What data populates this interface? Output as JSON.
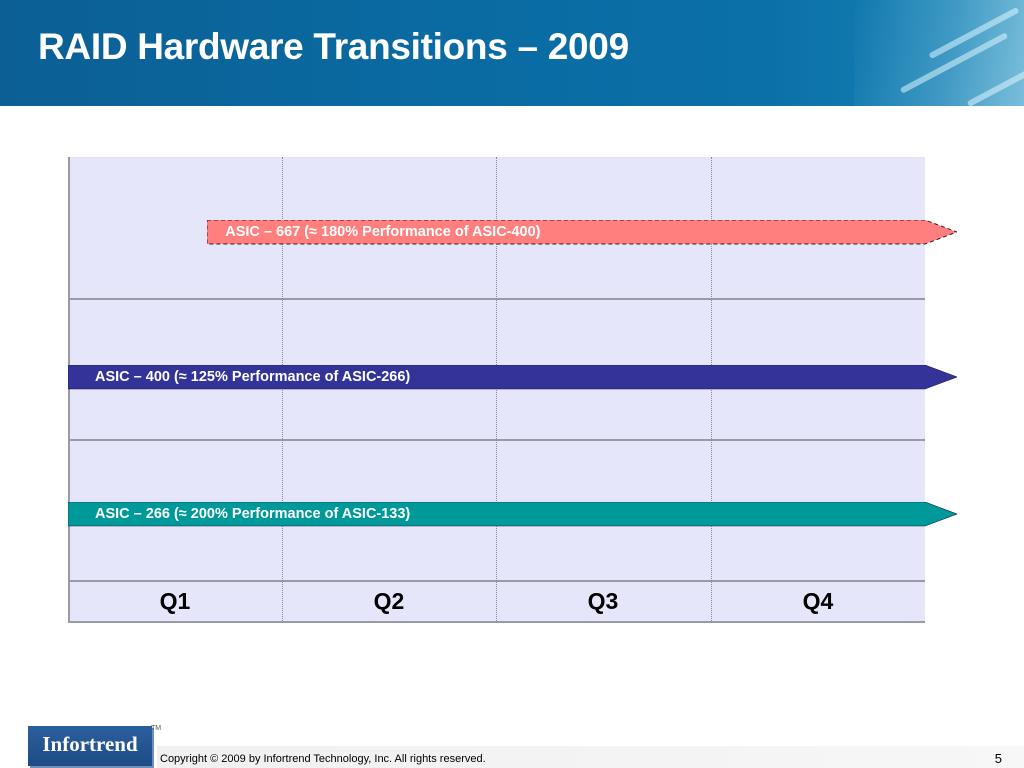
{
  "slide": {
    "title": "RAID Hardware Transitions – 2009",
    "page_number": "5"
  },
  "timeline": {
    "quarters": [
      "Q1",
      "Q2",
      "Q3",
      "Q4"
    ],
    "bars": [
      {
        "label": "ASIC – 667 (≈ 180% Performance of ASIC-400)",
        "start_quarter": 1.65,
        "end_quarter": 4.0,
        "color": "#ff7f7f",
        "style": "dashed"
      },
      {
        "label": "ASIC – 400 (≈ 125% Performance of ASIC-266)",
        "start_quarter": 1.0,
        "end_quarter": 4.0,
        "color": "#333399",
        "style": "solid"
      },
      {
        "label": "ASIC – 266 (≈ 200% Performance of ASIC-133)",
        "start_quarter": 1.0,
        "end_quarter": 4.0,
        "color": "#009999",
        "style": "solid"
      }
    ]
  },
  "footer": {
    "logo_text": "Infortrend",
    "trademark": "TM",
    "copyright": "Copyright © 2009 by Infortrend Technology, Inc. All rights reserved."
  },
  "colors": {
    "header_blue": "#0b6aa1",
    "grid_fill": "#e6e6fa",
    "logo_blue": "#1d4c86"
  }
}
